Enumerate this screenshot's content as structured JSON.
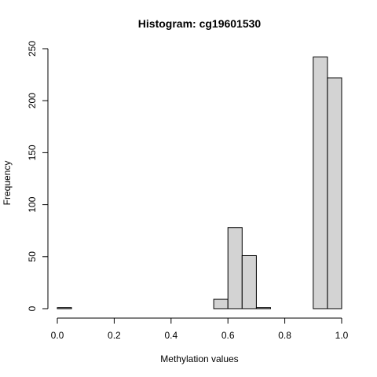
{
  "chart_data": {
    "type": "bar",
    "title": "Histogram: cg19601530",
    "xlabel": "Methylation values",
    "ylabel": "Frequency",
    "xlim": [
      0.0,
      1.0
    ],
    "ylim": [
      0,
      250
    ],
    "bin_width": 0.05,
    "bins": [
      {
        "start": 0.0,
        "end": 0.05,
        "count": 1
      },
      {
        "start": 0.05,
        "end": 0.1,
        "count": 0
      },
      {
        "start": 0.1,
        "end": 0.15,
        "count": 0
      },
      {
        "start": 0.15,
        "end": 0.2,
        "count": 0
      },
      {
        "start": 0.2,
        "end": 0.25,
        "count": 0
      },
      {
        "start": 0.25,
        "end": 0.3,
        "count": 0
      },
      {
        "start": 0.3,
        "end": 0.35,
        "count": 0
      },
      {
        "start": 0.35,
        "end": 0.4,
        "count": 0
      },
      {
        "start": 0.4,
        "end": 0.45,
        "count": 0
      },
      {
        "start": 0.45,
        "end": 0.5,
        "count": 0
      },
      {
        "start": 0.5,
        "end": 0.55,
        "count": 0
      },
      {
        "start": 0.55,
        "end": 0.6,
        "count": 9
      },
      {
        "start": 0.6,
        "end": 0.65,
        "count": 78
      },
      {
        "start": 0.65,
        "end": 0.7,
        "count": 51
      },
      {
        "start": 0.7,
        "end": 0.75,
        "count": 1
      },
      {
        "start": 0.75,
        "end": 0.8,
        "count": 0
      },
      {
        "start": 0.8,
        "end": 0.85,
        "count": 0
      },
      {
        "start": 0.85,
        "end": 0.9,
        "count": 0
      },
      {
        "start": 0.9,
        "end": 0.95,
        "count": 242
      },
      {
        "start": 0.95,
        "end": 1.0,
        "count": 222
      }
    ],
    "x_ticks": [
      {
        "value": 0.0,
        "label": "0.0"
      },
      {
        "value": 0.2,
        "label": "0.2"
      },
      {
        "value": 0.4,
        "label": "0.4"
      },
      {
        "value": 0.6,
        "label": "0.6"
      },
      {
        "value": 0.8,
        "label": "0.8"
      },
      {
        "value": 1.0,
        "label": "1.0"
      }
    ],
    "y_ticks": [
      {
        "value": 0,
        "label": "0"
      },
      {
        "value": 50,
        "label": "50"
      },
      {
        "value": 100,
        "label": "100"
      },
      {
        "value": 150,
        "label": "150"
      },
      {
        "value": 200,
        "label": "200"
      },
      {
        "value": 250,
        "label": "250"
      }
    ],
    "colors": {
      "bar_fill": "#d3d3d3",
      "bar_stroke": "#000000",
      "background": "#ffffff"
    }
  }
}
